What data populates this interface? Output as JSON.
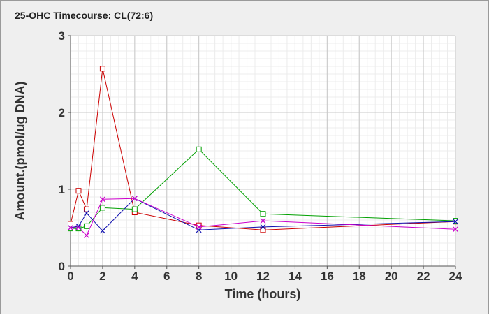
{
  "chart_data": {
    "type": "line",
    "title": "25-OHC Timecourse: CL(72:6)",
    "xlabel": "Time (hours)",
    "ylabel": "Amount.(pmol/ug DNA)",
    "xlim": [
      0,
      24
    ],
    "ylim": [
      0,
      3
    ],
    "xticks": [
      0,
      2,
      4,
      6,
      8,
      10,
      12,
      14,
      16,
      18,
      20,
      22,
      24
    ],
    "yticks": [
      0,
      1,
      2,
      3
    ],
    "grid": true,
    "legend": "none",
    "series": [
      {
        "color": "#cc0000",
        "marker": "square",
        "x": [
          0,
          0.5,
          1,
          2,
          4,
          8,
          12,
          24
        ],
        "y": [
          0.55,
          0.98,
          0.74,
          2.57,
          0.7,
          0.53,
          0.47,
          0.58
        ]
      },
      {
        "color": "#00a000",
        "marker": "square",
        "x": [
          0,
          0.5,
          1,
          2,
          4,
          8,
          12,
          24
        ],
        "y": [
          0.49,
          0.49,
          0.52,
          0.76,
          0.74,
          1.52,
          0.68,
          0.59
        ]
      },
      {
        "color": "#1010b0",
        "marker": "x",
        "x": [
          0,
          0.5,
          1,
          2,
          4,
          8,
          12,
          24
        ],
        "y": [
          0.5,
          0.52,
          0.69,
          0.46,
          0.88,
          0.47,
          0.51,
          0.58
        ]
      },
      {
        "color": "#cc00cc",
        "marker": "x",
        "x": [
          0,
          0.5,
          1,
          2,
          4,
          8,
          12,
          24
        ],
        "y": [
          0.5,
          0.5,
          0.4,
          0.87,
          0.88,
          0.51,
          0.59,
          0.48
        ]
      }
    ]
  }
}
